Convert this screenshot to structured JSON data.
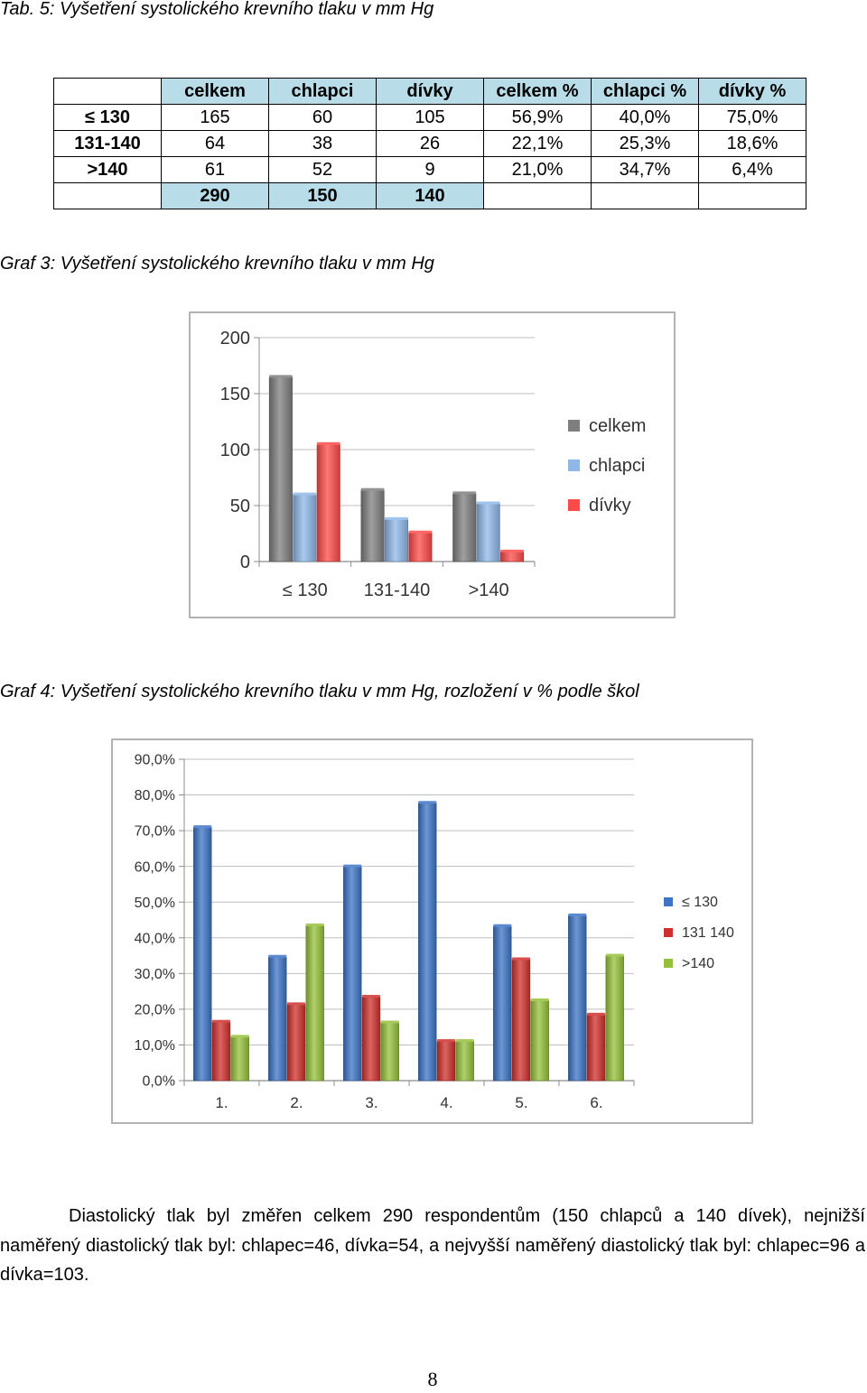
{
  "table_caption": "Tab. 5: Vyšetření systolického krevního tlaku v mm Hg",
  "table": {
    "headers": [
      "",
      "celkem",
      "chlapci",
      "dívky",
      "celkem  %",
      "chlapci %",
      "dívky %"
    ],
    "rows": [
      [
        "≤ 130",
        "165",
        "60",
        "105",
        "56,9%",
        "40,0%",
        "75,0%"
      ],
      [
        "131-140",
        "64",
        "38",
        "26",
        "22,1%",
        "25,3%",
        "18,6%"
      ],
      [
        ">140",
        "61",
        "52",
        "9",
        "21,0%",
        "34,7%",
        "6,4%"
      ]
    ],
    "totals": [
      "",
      "290",
      "150",
      "140",
      "",
      "",
      ""
    ]
  },
  "graf3_caption": "Graf 3: Vyšetření systolického krevního tlaku v mm Hg",
  "graf4_caption": "Graf 4: Vyšetření systolického krevního tlaku v mm Hg, rozložení v %  podle škol",
  "chart_data": [
    {
      "type": "bar",
      "categories": [
        "≤ 130",
        "131-140",
        ">140"
      ],
      "series": [
        {
          "name": "celkem",
          "values": [
            165,
            64,
            61
          ],
          "color": "#7f7f7f"
        },
        {
          "name": "chlapci",
          "values": [
            60,
            38,
            52
          ],
          "color": "#8fb8e8"
        },
        {
          "name": "dívky",
          "values": [
            105,
            26,
            9
          ],
          "color": "#ff4a4a"
        }
      ],
      "ylim": [
        0,
        200
      ],
      "yticks": [
        "0",
        "50",
        "100",
        "150",
        "200"
      ],
      "grid": true,
      "legend": "right"
    },
    {
      "type": "bar",
      "categories": [
        "1.",
        "2.",
        "3.",
        "4.",
        "5.",
        "6."
      ],
      "series": [
        {
          "name": "≤ 130",
          "values": [
            71.0,
            34.7,
            60.0,
            77.8,
            43.3,
            46.3
          ],
          "color": "#3c74c6"
        },
        {
          "name": "131 140",
          "values": [
            16.5,
            21.4,
            23.5,
            11.1,
            34.0,
            18.5
          ],
          "color": "#d0302c"
        },
        {
          "name": ">140",
          "values": [
            12.3,
            43.5,
            16.3,
            11.1,
            22.5,
            35.0
          ],
          "color": "#95c13a"
        }
      ],
      "ylim": [
        0,
        90
      ],
      "yticks": [
        "0,0%",
        "10,0%",
        "20,0%",
        "30,0%",
        "40,0%",
        "50,0%",
        "60,0%",
        "70,0%",
        "80,0%",
        "90,0%"
      ],
      "grid": true,
      "legend": "right"
    }
  ],
  "body_text": "Diastolický tlak byl změřen celkem 290 respondentům (150 chlapců a 140 dívek), nejnižší naměřený diastolický tlak byl: chlapec=46, dívka=54, a nejvyšší naměřený diastolický tlak byl: chlapec=96 a dívka=103.",
  "page_number": "8"
}
